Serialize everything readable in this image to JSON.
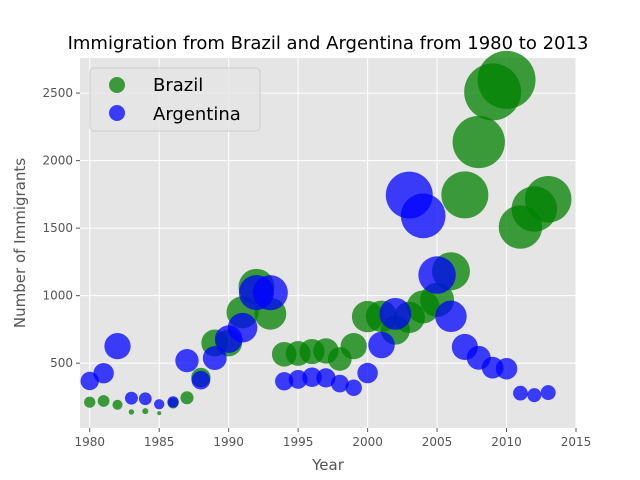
{
  "chart_data": {
    "type": "scatter",
    "title": "Immigration from Brazil and Argentina from 1980 to 2013",
    "xlabel": "Year",
    "ylabel": "Number of Immigrants",
    "xlim": [
      1979.3,
      2015
    ],
    "ylim": [
      20,
      2760
    ],
    "xticks": [
      1980,
      1985,
      1990,
      1995,
      2000,
      2005,
      2010,
      2015
    ],
    "yticks": [
      500,
      1000,
      1500,
      2000,
      2500
    ],
    "grid": true,
    "legend_position": "top-left",
    "bubble_size_encodes": "normalized number of immigrants",
    "series": [
      {
        "name": "Brazil",
        "color": "#008000",
        "x": [
          1980,
          1981,
          1982,
          1983,
          1984,
          1985,
          1986,
          1987,
          1988,
          1989,
          1990,
          1991,
          1992,
          1993,
          1994,
          1995,
          1996,
          1997,
          1998,
          1999,
          2000,
          2001,
          2002,
          2003,
          2004,
          2005,
          2006,
          2007,
          2008,
          2009,
          2010,
          2011,
          2012,
          2013
        ],
        "values": [
          211,
          220,
          192,
          139,
          145,
          130,
          205,
          244,
          394,
          650,
          650,
          877,
          1066,
          866,
          566,
          572,
          586,
          591,
          531,
          626,
          845,
          847,
          745,
          839,
          917,
          969,
          1181,
          1746,
          2138,
          2509,
          2598,
          1508,
          1642,
          1714
        ]
      },
      {
        "name": "Argentina",
        "color": "#0000ff",
        "x": [
          1980,
          1981,
          1982,
          1983,
          1984,
          1985,
          1986,
          1987,
          1988,
          1989,
          1990,
          1991,
          1992,
          1993,
          1994,
          1995,
          1996,
          1997,
          1998,
          1999,
          2000,
          2001,
          2002,
          2003,
          2004,
          2005,
          2006,
          2007,
          2008,
          2009,
          2010,
          2011,
          2012,
          2013
        ],
        "values": [
          368,
          426,
          626,
          241,
          237,
          196,
          213,
          519,
          374,
          538,
          678,
          763,
          1023,
          1022,
          366,
          380,
          396,
          391,
          349,
          318,
          427,
          635,
          865,
          1745,
          1591,
          1153,
          847,
          620,
          540,
          467,
          459,
          278,
          263,
          282
        ]
      }
    ]
  }
}
